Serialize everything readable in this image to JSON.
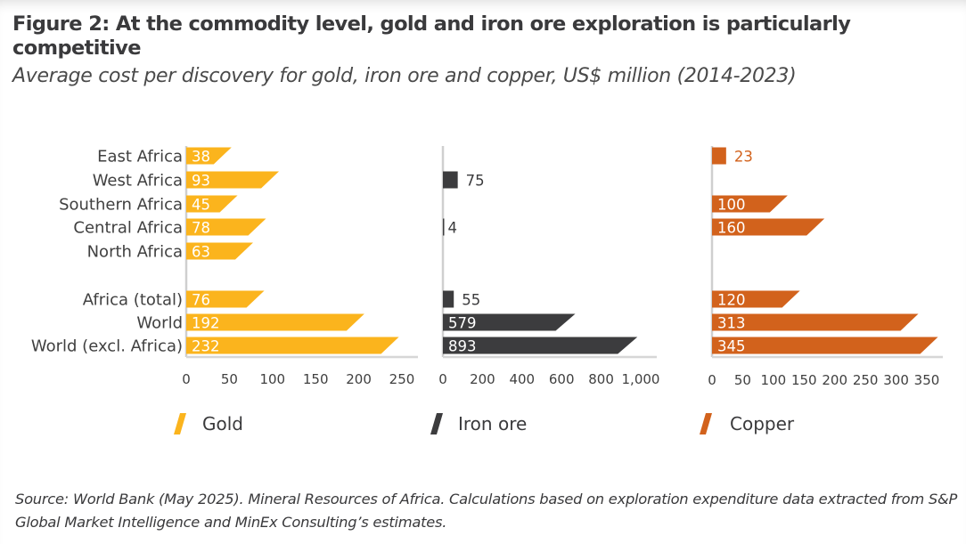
{
  "header": {
    "title": "Figure 2: At the commodity level, gold and iron ore exploration is particularly competitive",
    "subtitle": "Average cost per discovery for gold, iron ore and copper, US$ million (2014-2023)"
  },
  "source": "Source: World Bank (May 2025). Mineral Resources of Africa. Calculations based on exploration expenditure data extracted from S&P Global Market Intelligence and MinEx Consulting’s estimates.",
  "chart_data": {
    "type": "bar",
    "orientation": "horizontal",
    "title": "Figure 2: At the commodity level, gold and iron ore exploration is particularly competitive",
    "subtitle": "Average cost per discovery for gold, iron ore and copper, US$ million (2014-2023)",
    "xlabel": "",
    "ylabel": "",
    "unit": "US$ million",
    "categories": [
      "East Africa",
      "West Africa",
      "Southern Africa",
      "Central Africa",
      "North Africa",
      "",
      "Africa (total)",
      "World",
      "World (excl. Africa)"
    ],
    "legend_position": "bottom",
    "grid": false,
    "panels": [
      {
        "name": "Gold",
        "color": "#FBB41D",
        "values": [
          38,
          93,
          45,
          78,
          63,
          null,
          76,
          192,
          232
        ],
        "xlim": [
          0,
          250
        ],
        "ticks": [
          0,
          50,
          100,
          150,
          200,
          250
        ],
        "tick_labels": [
          "0",
          "50",
          "100",
          "150",
          "200",
          "250"
        ]
      },
      {
        "name": "Iron ore",
        "color": "#3C3C3E",
        "values": [
          null,
          75,
          null,
          4,
          null,
          null,
          55,
          579,
          893
        ],
        "xlim": [
          0,
          1000
        ],
        "ticks": [
          0,
          200,
          400,
          600,
          800,
          1000
        ],
        "tick_labels": [
          "0",
          "200",
          "400",
          "600",
          "800",
          "1,000"
        ]
      },
      {
        "name": "Copper",
        "color": "#D2621C",
        "values": [
          23,
          null,
          100,
          160,
          null,
          null,
          120,
          313,
          345
        ],
        "xlim": [
          0,
          350
        ],
        "ticks": [
          0,
          50,
          100,
          150,
          200,
          250,
          300,
          350
        ],
        "tick_labels": [
          "0",
          "50",
          "100",
          "150",
          "200",
          "250",
          "300",
          "350"
        ]
      }
    ]
  }
}
